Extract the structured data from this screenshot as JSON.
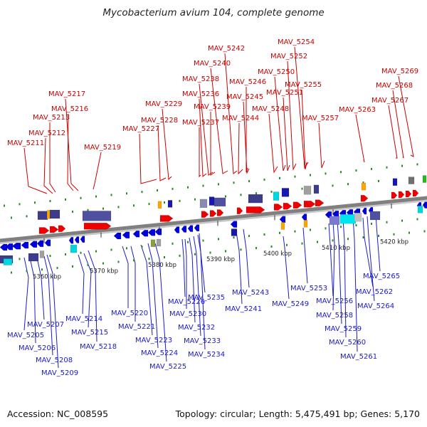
{
  "header": {
    "title": "Mycobacterium avium 104, complete genome"
  },
  "footer": {
    "accession": "Accession: NC_008595",
    "summary": "Topology: circular; Length: 5,475,491 bp; Genes: 5,170"
  },
  "colors": {
    "forward_label": "#cc0000",
    "reverse_label": "#1a1acc",
    "forward_gene": "#ee0000",
    "reverse_gene": "#0000dd",
    "backbone": "#808080",
    "tick_marks": "#2a8a2a"
  },
  "axis": {
    "ticks": [
      {
        "label": "5360 kbp"
      },
      {
        "label": "5370 kbp"
      },
      {
        "label": "5380 kbp"
      },
      {
        "label": "5390 kbp"
      },
      {
        "label": "5400 kbp"
      },
      {
        "label": "5410 kbp"
      },
      {
        "label": "5420 kbp"
      }
    ]
  },
  "top_genes": [
    "MAV_5211",
    "MAV_5212",
    "MAV_5213",
    "MAV_5216",
    "MAV_5217",
    "MAV_5219",
    "MAV_5227",
    "MAV_5228",
    "MAV_5229",
    "MAV_5237",
    "MAV_5236",
    "MAV_5239",
    "MAV_5238",
    "MAV_5240",
    "MAV_5242",
    "MAV_5244",
    "MAV_5245",
    "MAV_5246",
    "MAV_5248",
    "MAV_5250",
    "MAV_5251",
    "MAV_5252",
    "MAV_5254",
    "MAV_5255",
    "MAV_5257",
    "MAV_5263",
    "MAV_5267",
    "MAV_5268",
    "MAV_5269"
  ],
  "bottom_genes": [
    "MAV_5205",
    "MAV_5206",
    "MAV_5207",
    "MAV_5208",
    "MAV_5209",
    "MAV_5214",
    "MAV_5215",
    "MAV_5218",
    "MAV_5220",
    "MAV_5221",
    "MAV_5223",
    "MAV_5224",
    "MAV_5225",
    "MAV_5226",
    "MAV_5230",
    "MAV_5232",
    "MAV_5233",
    "MAV_5234",
    "MAV_5235",
    "MAV_5241",
    "MAV_5243",
    "MAV_5249",
    "MAV_5253",
    "MAV_5256",
    "MAV_5258",
    "MAV_5259",
    "MAV_5260",
    "MAV_5261",
    "MAV_5262",
    "MAV_5264",
    "MAV_5265"
  ]
}
